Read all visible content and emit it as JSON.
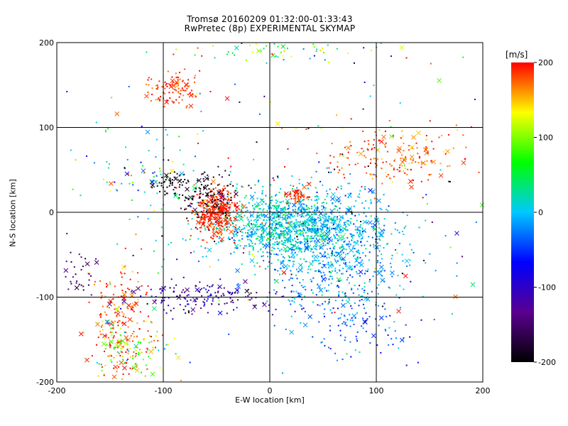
{
  "chart_data": {
    "type": "scatter",
    "title": "Tromsø 20160209 01:32:00-01:33:43",
    "subtitle": "RwPretec (8p) EXPERIMENTAL SKYMAP",
    "xlabel": "E-W location [km]",
    "ylabel": "N-S location [km]",
    "xlim": [
      -200,
      200
    ],
    "ylim": [
      -200,
      200
    ],
    "x_ticks": [
      "-200",
      "-100",
      "0",
      "100",
      "200"
    ],
    "y_ticks": [
      "-200",
      "-100",
      "0",
      "100",
      "200"
    ],
    "grid": true,
    "colorbar": {
      "label": "[m/s]",
      "range": [
        -200,
        200
      ],
      "ticks": [
        "200",
        "100",
        "0",
        "-100",
        "-200"
      ],
      "colormap": [
        "#000000",
        "#5a0090",
        "#0000ff",
        "#00c8ff",
        "#00ff00",
        "#ffff00",
        "#ff0000"
      ]
    },
    "clusters": [
      {
        "x": 10,
        "y": -15,
        "sx": 35,
        "sy": 20,
        "n": 900,
        "v": 10,
        "vs": 25
      },
      {
        "x": 60,
        "y": -40,
        "sx": 35,
        "sy": 35,
        "n": 700,
        "v": -10,
        "vs": 25
      },
      {
        "x": 80,
        "y": -120,
        "sx": 30,
        "sy": 25,
        "n": 150,
        "v": -40,
        "vs": 25
      },
      {
        "x": -50,
        "y": 0,
        "sx": 10,
        "sy": 14,
        "n": 380,
        "v": 190,
        "vs": 15
      },
      {
        "x": -60,
        "y": 20,
        "sx": 15,
        "sy": 14,
        "n": 120,
        "v": -185,
        "vs": 20
      },
      {
        "x": -90,
        "y": 145,
        "sx": 12,
        "sy": 10,
        "n": 110,
        "v": 185,
        "vs": 15
      },
      {
        "x": -95,
        "y": 35,
        "sx": 8,
        "sy": 6,
        "n": 45,
        "v": -195,
        "vs": 10
      },
      {
        "x": 120,
        "y": 65,
        "sx": 35,
        "sy": 18,
        "n": 200,
        "v": 180,
        "vs": 20
      },
      {
        "x": -140,
        "y": -130,
        "sx": 14,
        "sy": 35,
        "n": 200,
        "v": 180,
        "vs": 20
      },
      {
        "x": -60,
        "y": -100,
        "sx": 35,
        "sy": 10,
        "n": 160,
        "v": -120,
        "vs": 40
      },
      {
        "x": -185,
        "y": -70,
        "sx": 15,
        "sy": 15,
        "n": 40,
        "v": -150,
        "vs": 20
      },
      {
        "x": 25,
        "y": 18,
        "sx": 6,
        "sy": 5,
        "n": 50,
        "v": 190,
        "vs": 10
      },
      {
        "x": -130,
        "y": -160,
        "sx": 20,
        "sy": 20,
        "n": 120,
        "v": 100,
        "vs": 60
      },
      {
        "x": -120,
        "y": 45,
        "sx": 30,
        "sy": 25,
        "n": 70,
        "v": 40,
        "vs": 70
      },
      {
        "x": 10,
        "y": 190,
        "sx": 45,
        "sy": 8,
        "n": 60,
        "v": 60,
        "vs": 60
      },
      {
        "x": 0,
        "y": 40,
        "sx": 160,
        "sy": 130,
        "n": 250,
        "v": 0,
        "vs": 130
      }
    ]
  }
}
